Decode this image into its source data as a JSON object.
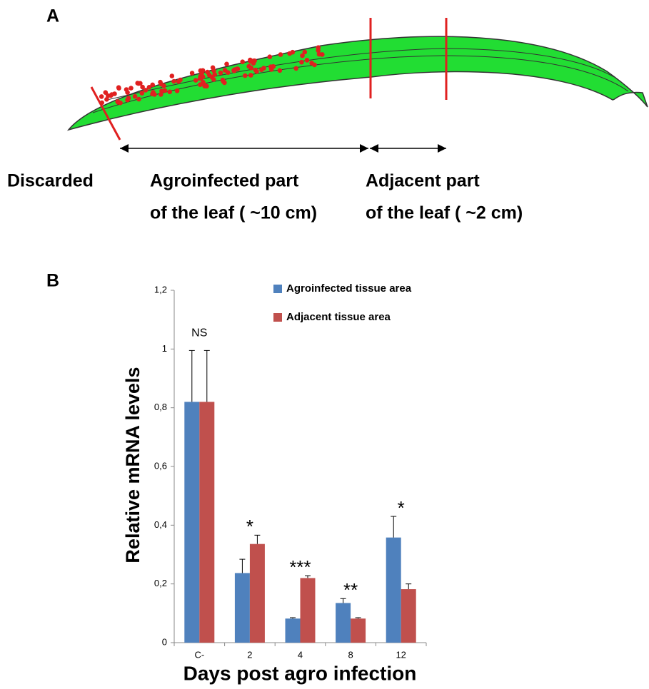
{
  "panel_a": {
    "label": "A",
    "discarded": "Discarded",
    "agroinfected": [
      "Agroinfected part",
      "of the leaf ( ~10 cm)"
    ],
    "adjacent": [
      "Adjacent part",
      "of the leaf ( ~2 cm)"
    ]
  },
  "chart_data": {
    "type": "bar",
    "panel_label": "B",
    "x_label": "Days post agro infection",
    "y_label": "Relative mRNA levels",
    "categories": [
      "C-",
      "2",
      "4",
      "8",
      "12"
    ],
    "series": [
      {
        "name": "Agroinfected tissue area",
        "color": "#4f81bd",
        "values": [
          0.82,
          0.237,
          0.082,
          0.135,
          0.358
        ],
        "errors": [
          0.175,
          0.047,
          0.003,
          0.015,
          0.072
        ]
      },
      {
        "name": "Adjacent tissue area",
        "color": "#c0504d",
        "values": [
          0.82,
          0.336,
          0.22,
          0.082,
          0.182
        ],
        "errors": [
          0.175,
          0.03,
          0.008,
          0.003,
          0.018
        ]
      }
    ],
    "significance": [
      "NS",
      "*",
      "***",
      "**",
      "*"
    ],
    "ylim": [
      0,
      1.2
    ],
    "yticks": [
      0,
      {
        "value": 0.2,
        "label": "0,2"
      },
      {
        "value": 0.4,
        "label": "0,4"
      },
      {
        "value": 0.6,
        "label": "0,6"
      },
      {
        "value": 0.8,
        "label": "0,8"
      },
      1,
      {
        "value": 1.2,
        "label": "1,2"
      }
    ],
    "grid": false
  }
}
